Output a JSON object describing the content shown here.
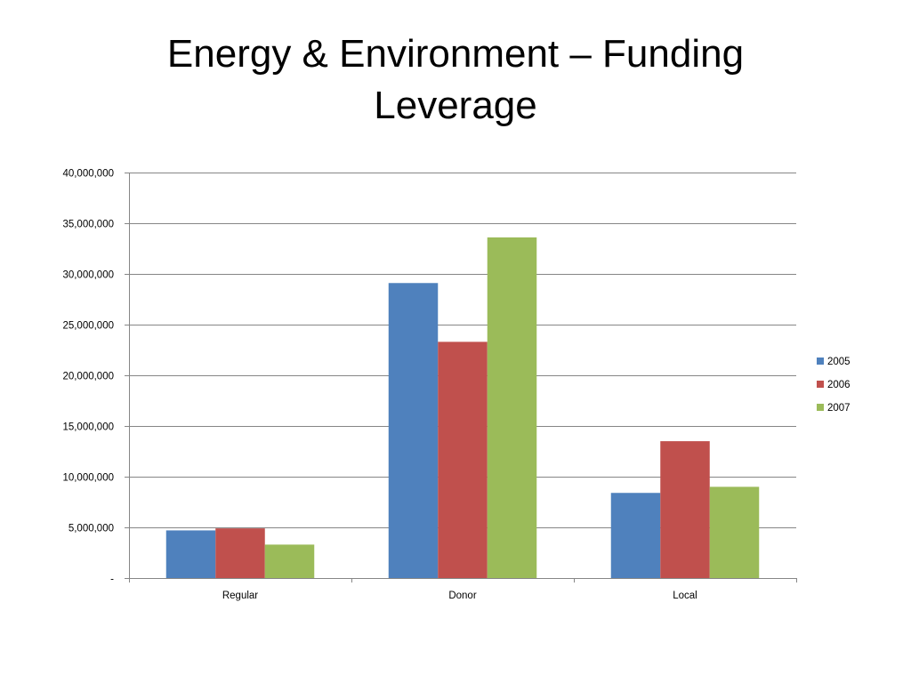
{
  "slide": {
    "title_line1": "Energy & Environment – Funding",
    "title_line2": "Leverage"
  },
  "chart_data": {
    "type": "bar",
    "categories": [
      "Regular",
      "Donor",
      "Local"
    ],
    "series": [
      {
        "name": "2005",
        "color": "#4F81BD",
        "values": [
          4700000,
          29100000,
          8400000
        ]
      },
      {
        "name": "2006",
        "color": "#C0504D",
        "values": [
          4900000,
          23300000,
          13500000
        ]
      },
      {
        "name": "2007",
        "color": "#9BBB59",
        "values": [
          3300000,
          33600000,
          9000000
        ]
      }
    ],
    "y_ticks": [
      {
        "value": 0,
        "label": "-"
      },
      {
        "value": 5000000,
        "label": "5,000,000"
      },
      {
        "value": 10000000,
        "label": "10,000,000"
      },
      {
        "value": 15000000,
        "label": "15,000,000"
      },
      {
        "value": 20000000,
        "label": "20,000,000"
      },
      {
        "value": 25000000,
        "label": "25,000,000"
      },
      {
        "value": 30000000,
        "label": "30,000,000"
      },
      {
        "value": 35000000,
        "label": "35,000,000"
      },
      {
        "value": 40000000,
        "label": "40,000,000"
      }
    ],
    "ylim": [
      0,
      40000000
    ],
    "grid": true,
    "legend_position": "right",
    "xlabel": "",
    "ylabel": ""
  }
}
